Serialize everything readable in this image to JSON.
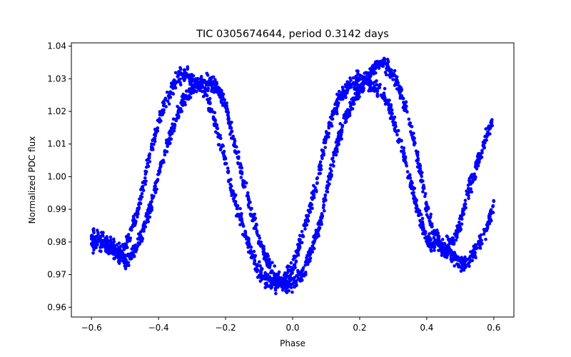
{
  "chart_data": {
    "type": "scatter",
    "title": "TIC 0305674644, period 0.3142 days",
    "xlabel": "Phase",
    "ylabel": "Normalized PDC flux",
    "xlim": [
      -0.66,
      0.66
    ],
    "ylim": [
      0.957,
      1.041
    ],
    "xticks": [
      -0.6,
      -0.4,
      -0.2,
      0.0,
      0.2,
      0.4,
      0.6
    ],
    "xtick_labels": [
      "−0.6",
      "−0.4",
      "−0.2",
      "0.0",
      "0.2",
      "0.4",
      "0.6"
    ],
    "yticks": [
      0.96,
      0.97,
      0.98,
      0.99,
      1.0,
      1.01,
      1.02,
      1.03,
      1.04
    ],
    "ytick_labels": [
      "0.96",
      "0.97",
      "0.98",
      "0.99",
      "1.00",
      "1.01",
      "1.02",
      "1.03",
      "1.04"
    ],
    "grid": false,
    "marker_color": "#0000ff",
    "series": [
      {
        "phase": [
          -0.6,
          -0.58,
          -0.55,
          -0.52,
          -0.5,
          -0.48,
          -0.45,
          -0.42,
          -0.4,
          -0.38,
          -0.35,
          -0.33,
          -0.31,
          -0.29,
          -0.27,
          -0.25,
          -0.22,
          -0.2,
          -0.18,
          -0.15,
          -0.12,
          -0.1,
          -0.08,
          -0.05,
          -0.03,
          0.0,
          0.03,
          0.05,
          0.08,
          0.1,
          0.12,
          0.15,
          0.18,
          0.2,
          0.22,
          0.25,
          0.27,
          0.29,
          0.32,
          0.35,
          0.38,
          0.4,
          0.42,
          0.45,
          0.48,
          0.5,
          0.52,
          0.55,
          0.58,
          0.6
        ],
        "flux": [
          0.982,
          0.981,
          0.979,
          0.977,
          0.978,
          0.984,
          0.995,
          1.009,
          1.017,
          1.023,
          1.029,
          1.031,
          1.031,
          1.029,
          1.027,
          1.023,
          1.012,
          1.004,
          0.995,
          0.985,
          0.976,
          0.971,
          0.968,
          0.967,
          0.968,
          0.972,
          0.982,
          0.989,
          1.002,
          1.012,
          1.019,
          1.026,
          1.029,
          1.03,
          1.029,
          1.027,
          1.025,
          1.021,
          1.011,
          0.999,
          0.987,
          0.981,
          0.979,
          0.978,
          0.98,
          0.986,
          0.994,
          1.004,
          1.013,
          1.018
        ]
      },
      {
        "phase": [
          -0.6,
          -0.58,
          -0.55,
          -0.52,
          -0.5,
          -0.48,
          -0.45,
          -0.42,
          -0.4,
          -0.38,
          -0.35,
          -0.33,
          -0.31,
          -0.29,
          -0.27,
          -0.25,
          -0.22,
          -0.2,
          -0.18,
          -0.15,
          -0.12,
          -0.1,
          -0.08,
          -0.05,
          -0.03,
          0.0,
          0.03,
          0.05,
          0.08,
          0.1,
          0.12,
          0.15,
          0.18,
          0.2,
          0.22,
          0.25,
          0.27,
          0.29,
          0.32,
          0.35,
          0.38,
          0.4,
          0.42,
          0.45,
          0.48,
          0.5,
          0.52,
          0.55,
          0.58,
          0.6
        ],
        "flux": [
          0.979,
          0.98,
          0.979,
          0.976,
          0.974,
          0.976,
          0.982,
          0.992,
          1.001,
          1.008,
          1.017,
          1.022,
          1.026,
          1.028,
          1.029,
          1.029,
          1.026,
          1.022,
          1.013,
          1.0,
          0.989,
          0.981,
          0.975,
          0.969,
          0.967,
          0.967,
          0.97,
          0.976,
          0.985,
          0.995,
          1.005,
          1.016,
          1.023,
          1.026,
          1.03,
          1.034,
          1.035,
          1.033,
          1.027,
          1.016,
          1.002,
          0.991,
          0.983,
          0.978,
          0.975,
          0.973,
          0.974,
          0.978,
          0.985,
          0.992
        ]
      }
    ]
  }
}
